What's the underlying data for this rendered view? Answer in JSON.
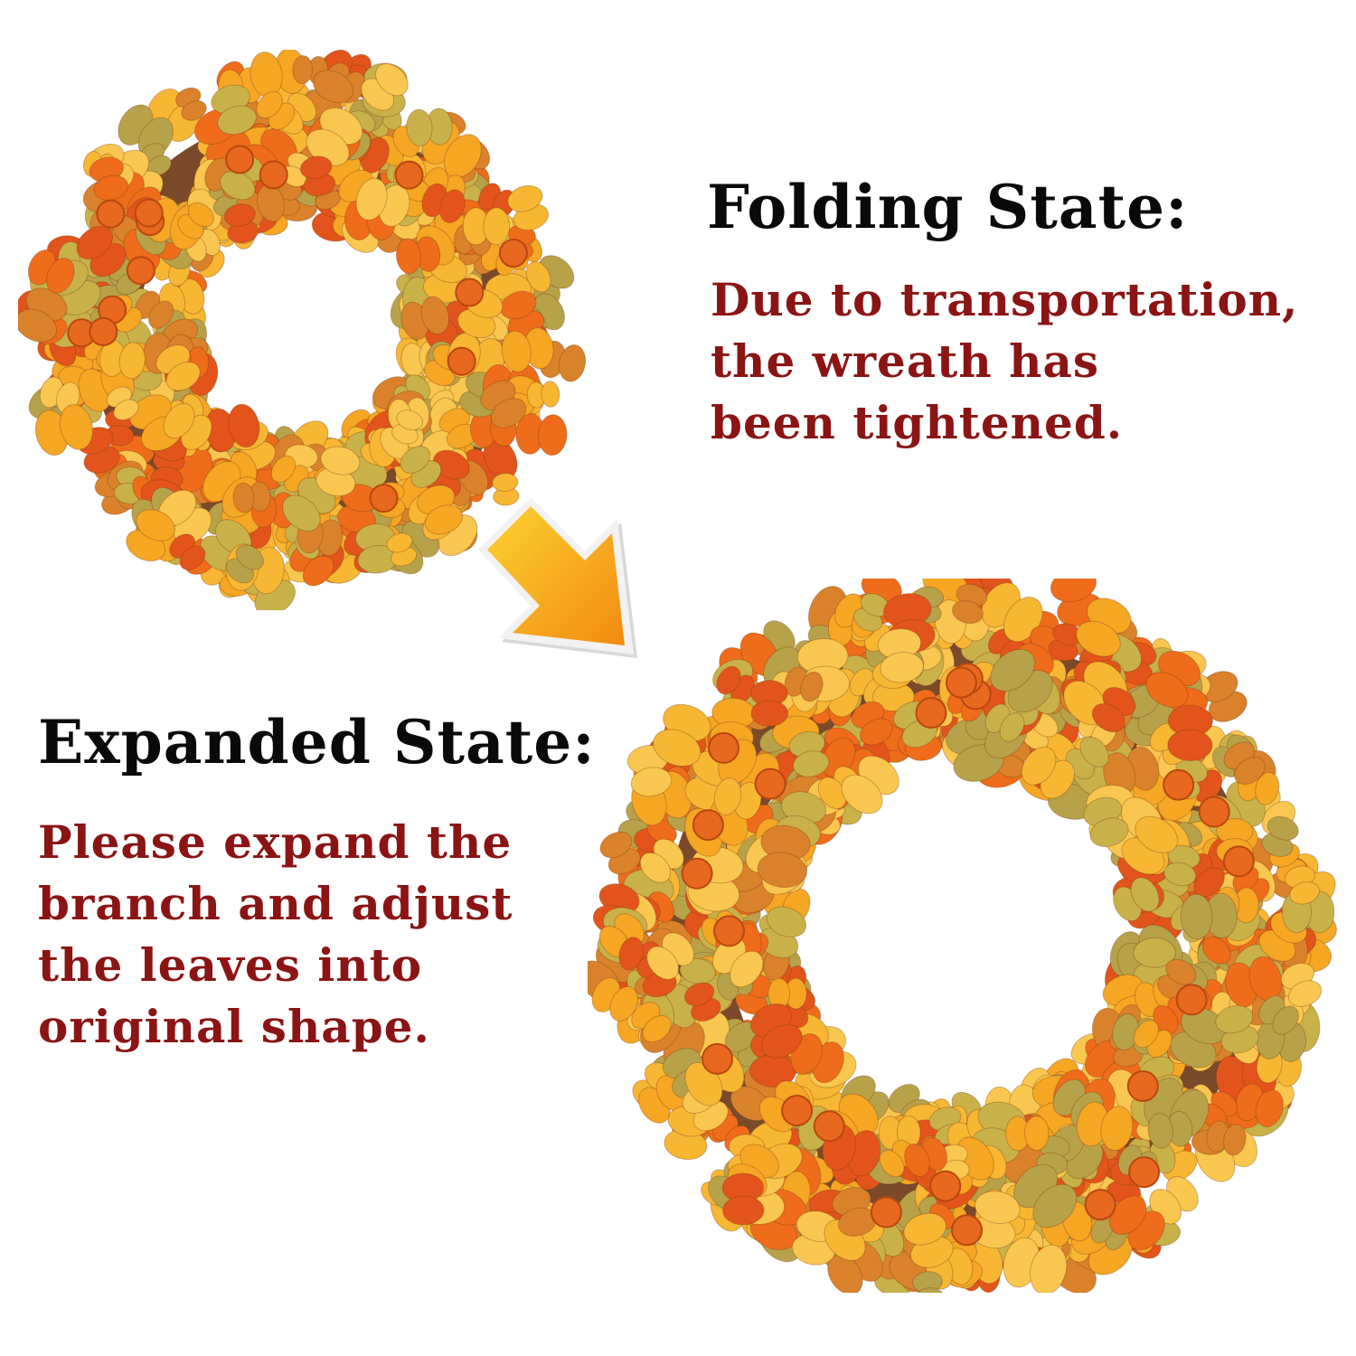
{
  "folding": {
    "heading": "Folding State:",
    "lines": [
      "Due to transportation,",
      "the wreath has",
      "been tightened."
    ]
  },
  "expanded": {
    "heading": "Expanded State:",
    "lines": [
      "Please expand the",
      "branch and adjust",
      "the leaves into",
      "original shape."
    ]
  },
  "colors": {
    "heading": "#0a0a0a",
    "body_text": "#8b1414",
    "leaf_palette": [
      "#f5a623",
      "#f7b733",
      "#ef6c1a",
      "#e2541b",
      "#f9c74f",
      "#b7a24a",
      "#d9822b",
      "#c9b14a"
    ],
    "pumpkin": "#e8681f",
    "arrow": "#f6a21c"
  },
  "icons": {
    "arrow": "arrow-down-right-icon",
    "small_wreath": "autumn-wreath-folded",
    "large_wreath": "autumn-wreath-expanded"
  }
}
